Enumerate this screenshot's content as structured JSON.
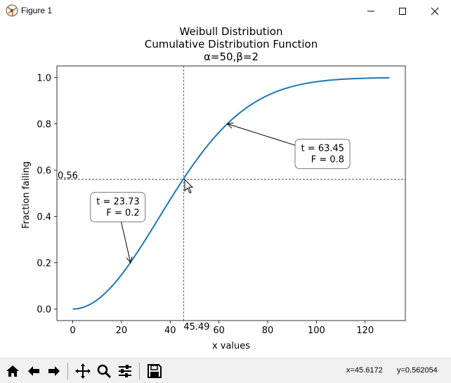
{
  "window": {
    "title": "Figure 1",
    "icon": "matplotlib-icon"
  },
  "toolbar": {
    "buttons": [
      "home-icon",
      "back-arrow-icon",
      "forward-arrow-icon",
      "pan-icon",
      "zoom-icon",
      "configure-subplots-icon",
      "save-icon"
    ],
    "x_readout": "x=45.6172",
    "y_readout": "y=0.562054"
  },
  "chart_data": {
    "type": "line",
    "title_lines": [
      "Weibull Distribution",
      "Cumulative Distribution Function",
      "α=50,β=2"
    ],
    "xlabel": "x values",
    "ylabel": "Fraction failing",
    "xlim": [
      -6.5,
      136.5
    ],
    "ylim": [
      -0.05,
      1.05
    ],
    "xticks": [
      0,
      20,
      40,
      60,
      80,
      100,
      120
    ],
    "yticks": [
      0.0,
      0.2,
      0.4,
      0.6,
      0.8,
      1.0
    ],
    "ytick_labels": [
      "0.0",
      "0.2",
      "0.4",
      "0.6",
      "0.8",
      "1.0"
    ],
    "grid": false,
    "series": [
      {
        "x_range": [
          0,
          130
        ],
        "alpha": 50,
        "beta": 2,
        "color": "#1f77b4"
      }
    ],
    "crosshair": {
      "x": 45.49,
      "y": 0.56,
      "x_label": "45.49",
      "y_label": "0.56"
    },
    "annotations": [
      {
        "lines": [
          "t = 23.73",
          "F = 0.2"
        ],
        "point": [
          23.73,
          0.2
        ],
        "text_at": [
          18.5,
          0.44
        ]
      },
      {
        "lines": [
          "t = 63.45",
          "F = 0.8"
        ],
        "point": [
          63.45,
          0.8
        ],
        "text_at": [
          102.5,
          0.67
        ]
      }
    ]
  }
}
